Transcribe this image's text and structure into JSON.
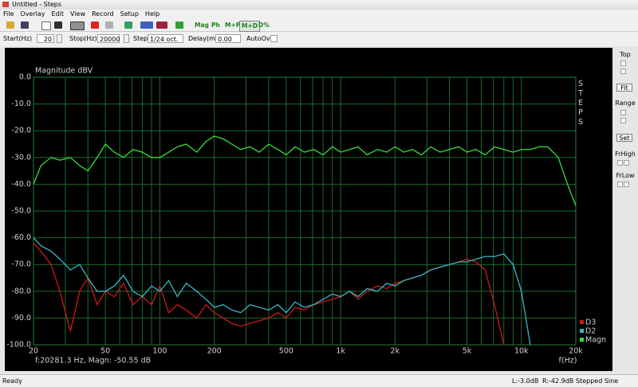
{
  "window": {
    "title": "Untitled - Steps"
  },
  "menu": [
    "File",
    "Overlay",
    "Edit",
    "View",
    "Record",
    "Setup",
    "Help"
  ],
  "toolbar": [
    "Mag",
    "Ph",
    "M+P",
    "M+D",
    "D%"
  ],
  "params": {
    "start_label": "Start(Hz)",
    "start": "20",
    "stop_label": "Stop(Hz)",
    "stop": "20000",
    "step_label": "Step",
    "step": "1/24 oct.",
    "delay_label": "Delay(ms)",
    "delay": "0.00",
    "autoovr_label": "AutoOvr"
  },
  "side_panel": {
    "top": "Top",
    "fit": "Fit",
    "range": "Range",
    "set": "Set",
    "frhigh": "FrHigh",
    "frlow": "FrLow"
  },
  "chart_data": {
    "type": "line",
    "y_label": "Magnitude dBV",
    "x_label": "f(Hz)",
    "side_label": "STEPS",
    "cursor_readout": "f:20281.3 Hz, Magn: -50.55 dB",
    "log_x": true,
    "grid": true,
    "legend": "lower right",
    "xlim": [
      20,
      20000
    ],
    "ylim": [
      -100,
      0
    ],
    "xticks": [
      20,
      50,
      100,
      200,
      500,
      {
        "value": 1000,
        "label": "1k"
      },
      {
        "value": 2000,
        "label": "2k"
      },
      {
        "value": 5000,
        "label": "5k"
      },
      {
        "value": 10000,
        "label": "10k"
      },
      {
        "value": 20000,
        "label": "20k"
      }
    ],
    "minor_xticks": [
      30,
      40,
      60,
      70,
      80,
      90,
      300,
      400,
      600,
      700,
      800,
      900,
      3000,
      4000,
      6000,
      7000,
      8000,
      9000
    ],
    "yticks": [
      {
        "value": 0,
        "label": "0.0"
      },
      {
        "value": -10,
        "label": "-10.0"
      },
      {
        "value": -20,
        "label": "-20.0"
      },
      {
        "value": -30,
        "label": "-30.0"
      },
      {
        "value": -40,
        "label": "-40.0"
      },
      {
        "value": -50,
        "label": "-50.0"
      },
      {
        "value": -60,
        "label": "-60.0"
      },
      {
        "value": -70,
        "label": "-70.0"
      },
      {
        "value": -80,
        "label": "-80.0"
      },
      {
        "value": -90,
        "label": "-90.0"
      },
      {
        "value": -100,
        "label": "-100.0"
      }
    ],
    "x": [
      20,
      22,
      25,
      28,
      32,
      36,
      40,
      45,
      50,
      56,
      63,
      71,
      80,
      90,
      100,
      112,
      125,
      140,
      160,
      180,
      200,
      224,
      250,
      280,
      315,
      355,
      400,
      450,
      500,
      560,
      630,
      710,
      800,
      900,
      1000,
      1120,
      1250,
      1400,
      1600,
      1800,
      2000,
      2240,
      2500,
      2800,
      3150,
      3550,
      4000,
      4500,
      5000,
      5600,
      6300,
      7100,
      8000,
      9000,
      10000,
      11200,
      12500,
      14000,
      16000,
      18000,
      20000
    ],
    "series": [
      {
        "name": "D3",
        "color": "#cc1818",
        "values": [
          -62,
          -65,
          -70,
          -80,
          -95,
          -80,
          -75,
          -85,
          -80,
          -82,
          -77,
          -85,
          -82,
          -85,
          -78,
          -88,
          -85,
          -87,
          -90,
          -85,
          -88,
          -90,
          -92,
          -93,
          -92,
          -91,
          -90,
          -88,
          -90,
          -86,
          -87,
          -85,
          -84,
          -83,
          -82,
          -80,
          -83,
          -80,
          -78,
          -79,
          -77,
          -76,
          -75,
          -74,
          -72,
          -71,
          -70,
          -69,
          -68,
          -69,
          -72,
          -85,
          -100,
          null,
          null,
          null,
          null,
          null,
          null,
          null,
          null
        ]
      },
      {
        "name": "D2",
        "color": "#38b8c8",
        "values": [
          -60,
          -63,
          -65,
          -68,
          -72,
          -70,
          -75,
          -80,
          -80,
          -78,
          -74,
          -80,
          -82,
          -78,
          -80,
          -76,
          -82,
          -77,
          -80,
          -83,
          -86,
          -85,
          -87,
          -88,
          -85,
          -86,
          -87,
          -85,
          -88,
          -84,
          -86,
          -85,
          -83,
          -81,
          -82,
          -80,
          -82,
          -79,
          -80,
          -77,
          -78,
          -76,
          -75,
          -74,
          -72,
          -71,
          -70,
          -69,
          -69,
          -68,
          -67,
          -67,
          -66,
          -70,
          -80,
          -100,
          null,
          null,
          null,
          null,
          null
        ]
      },
      {
        "name": "Magn",
        "color": "#3cdc3c",
        "values": [
          -40,
          -33,
          -30,
          -31,
          -30,
          -33,
          -35,
          -30,
          -25,
          -28,
          -30,
          -27,
          -28,
          -30,
          -30,
          -28,
          -26,
          -25,
          -28,
          -24,
          -22,
          -23,
          -25,
          -27,
          -26,
          -28,
          -25,
          -27,
          -29,
          -26,
          -28,
          -27,
          -29,
          -26,
          -28,
          -27,
          -26,
          -29,
          -27,
          -28,
          -26,
          -28,
          -27,
          -29,
          -26,
          -28,
          -27,
          -26,
          -28,
          -27,
          -29,
          -26,
          -27,
          -28,
          -27,
          -27,
          -26,
          -26,
          -30,
          -40,
          -48
        ]
      }
    ]
  },
  "status": [
    "Ready",
    "L:-3.0dB",
    "R:-42.9dB",
    "Stepped Sine Response"
  ]
}
